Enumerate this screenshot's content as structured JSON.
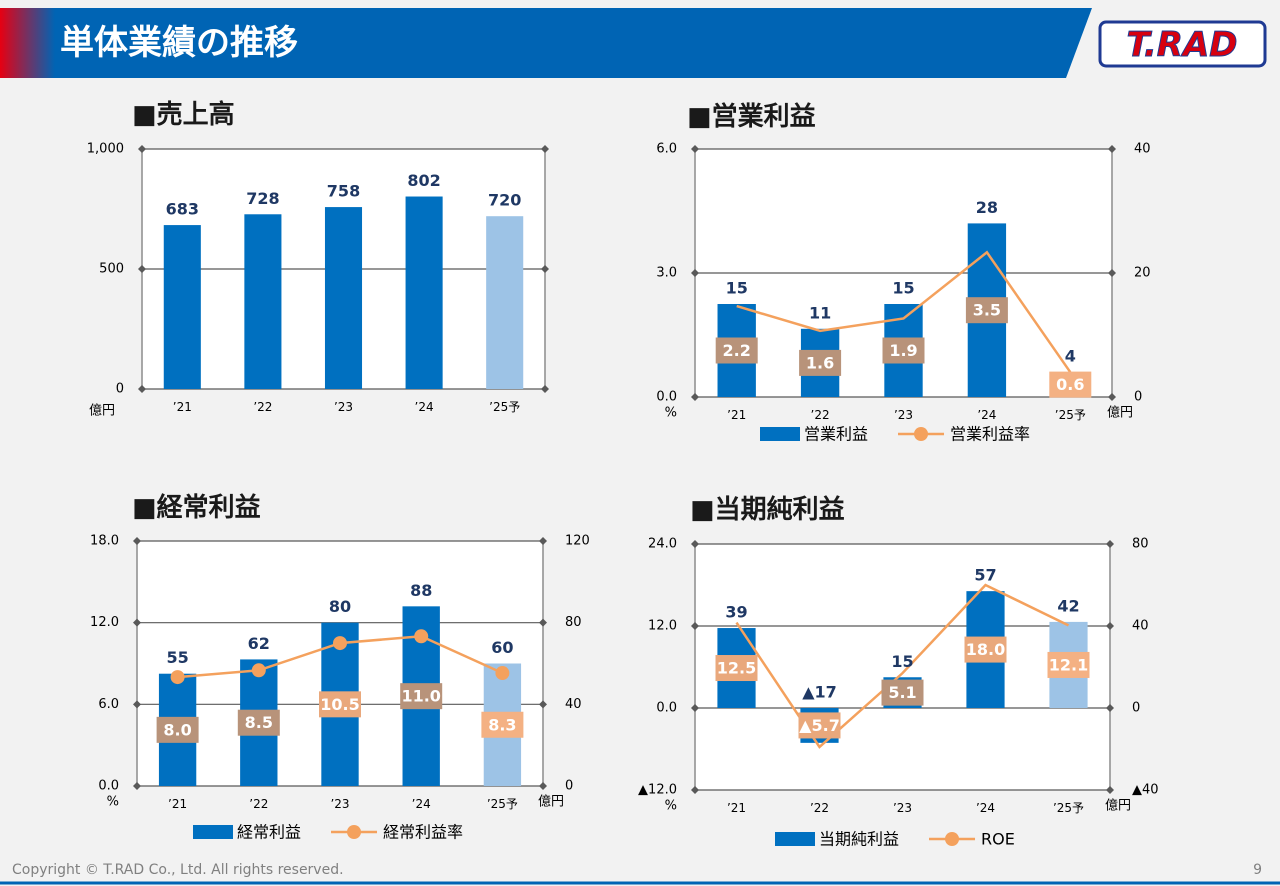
{
  "header": {
    "title": "単体業績の推移",
    "logo": "T.RAD"
  },
  "footer": {
    "copyright": "Copyright © T.RAD Co., Ltd. All rights reserved.",
    "page": 9
  },
  "chart_data": [
    {
      "type": "bar",
      "title": "■売上高",
      "categories": [
        "’21",
        "’22",
        "’23",
        "’24",
        "’25予"
      ],
      "series": [
        {
          "values": [
            683,
            728,
            758,
            802,
            720
          ],
          "colors": [
            "#0070c0",
            "#0070c0",
            "#0070c0",
            "#0070c0",
            "#9dc3e6"
          ]
        }
      ],
      "ylim": [
        0,
        1000
      ],
      "yticks": [
        0,
        500,
        {
          "value": 1000,
          "label": "1,000"
        }
      ],
      "y_unit": "億円",
      "grid": true
    },
    {
      "type": "combo",
      "title": "■営業利益",
      "categories": [
        "’21",
        "’22",
        "’23",
        "’24",
        "’25予"
      ],
      "series": [
        {
          "name": "営業利益",
          "type": "bar",
          "axis": "y2",
          "values": [
            15,
            11,
            15,
            28,
            4
          ],
          "colors": [
            "#0070c0",
            "#0070c0",
            "#0070c0",
            "#0070c0",
            "#9dc3e6"
          ]
        },
        {
          "name": "営業利益率",
          "type": "line",
          "color": "#f4a15d",
          "markers": false,
          "values": [
            2.2,
            1.6,
            1.9,
            3.5,
            0.6
          ],
          "value_labels": [
            "2.2",
            "1.6",
            "1.9",
            "3.5",
            "0.6"
          ],
          "label_colors": [
            "#b8937a",
            "#b8937a",
            "#b8937a",
            "#b8937a",
            "#f4b183"
          ]
        }
      ],
      "ylim": [
        0,
        6
      ],
      "yticks": [
        {
          "value": 0,
          "label": "0.0"
        },
        {
          "value": 3,
          "label": "3.0"
        },
        {
          "value": 6,
          "label": "6.0"
        }
      ],
      "y2lim": [
        0,
        40
      ],
      "y2ticks": [
        0,
        20,
        40
      ],
      "y_unit": "%",
      "y2_unit": "億円",
      "grid": true,
      "legend": "bottom"
    },
    {
      "type": "combo",
      "title": "■経常利益",
      "categories": [
        "’21",
        "’22",
        "’23",
        "’24",
        "’25予"
      ],
      "series": [
        {
          "name": "経常利益",
          "type": "bar",
          "axis": "y2",
          "values": [
            55,
            62,
            80,
            88,
            60
          ],
          "colors": [
            "#0070c0",
            "#0070c0",
            "#0070c0",
            "#0070c0",
            "#9dc3e6"
          ]
        },
        {
          "name": "経常利益率",
          "type": "line",
          "color": "#f4a15d",
          "markers": true,
          "values": [
            8.0,
            8.5,
            10.5,
            11.0,
            8.3
          ],
          "value_labels": [
            "8.0",
            "8.5",
            "10.5",
            "11.0",
            "8.3"
          ],
          "label_colors": [
            "#b8937a",
            "#b8937a",
            "#e9a87c",
            "#b8937a",
            "#f4b183"
          ]
        }
      ],
      "ylim": [
        0,
        18
      ],
      "yticks": [
        {
          "value": 0,
          "label": "0.0"
        },
        {
          "value": 6,
          "label": "6.0"
        },
        {
          "value": 12,
          "label": "12.0"
        },
        {
          "value": 18,
          "label": "18.0"
        }
      ],
      "y2lim": [
        0,
        120
      ],
      "y2ticks": [
        0,
        40,
        80,
        120
      ],
      "y_unit": "%",
      "y2_unit": "億円",
      "grid": true,
      "legend": "bottom"
    },
    {
      "type": "combo",
      "title": "■当期純利益",
      "categories": [
        "’21",
        "’22",
        "’23",
        "’24",
        "’25予"
      ],
      "series": [
        {
          "name": "当期純利益",
          "type": "bar",
          "axis": "y2",
          "values": [
            39,
            -17,
            15,
            57,
            42
          ],
          "value_labels": [
            "39",
            "▲17",
            "15",
            "57",
            "42"
          ],
          "colors": [
            "#0070c0",
            "#0070c0",
            "#0070c0",
            "#0070c0",
            "#9dc3e6"
          ]
        },
        {
          "name": "ROE",
          "type": "line",
          "color": "#f4a15d",
          "markers": false,
          "values": [
            12.5,
            -5.7,
            5.1,
            18.0,
            12.1
          ],
          "value_labels": [
            "12.5",
            "▲5.7",
            "5.1",
            "18.0",
            "12.1"
          ],
          "label_colors": [
            "#e9a87c",
            "#e9a87c",
            "#b8937a",
            "#e9a87c",
            "#f4b183"
          ]
        }
      ],
      "ylim": [
        -12,
        24
      ],
      "yticks": [
        {
          "value": -12,
          "label": "▲12.0"
        },
        {
          "value": 0,
          "label": "0.0"
        },
        {
          "value": 12,
          "label": "12.0"
        },
        {
          "value": 24,
          "label": "24.0"
        }
      ],
      "y2lim": [
        -40,
        80
      ],
      "y2ticks": [
        {
          "value": -40,
          "label": "▲40"
        },
        0,
        40,
        80
      ],
      "y_unit": "%",
      "y2_unit": "億円",
      "grid": true,
      "legend": "bottom"
    }
  ]
}
